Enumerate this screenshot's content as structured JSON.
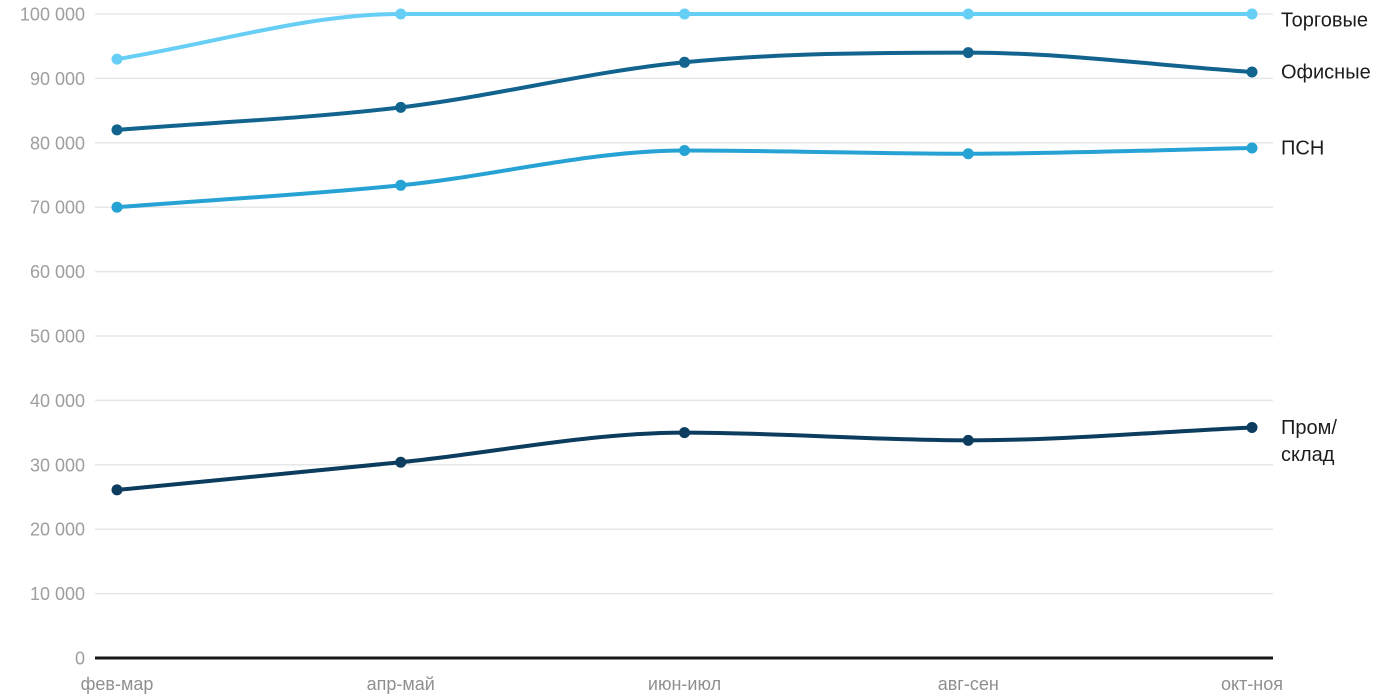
{
  "chart_data": {
    "type": "line",
    "title": "",
    "xlabel": "",
    "ylabel": "",
    "categories": [
      "фев-мар",
      "апр-май",
      "июн-июл",
      "авг-сен",
      "окт-ноя"
    ],
    "series": [
      {
        "name": "Торговые",
        "values": [
          93000,
          100000,
          100000,
          100000,
          100000
        ],
        "color": "#67cef5",
        "label_lines": [
          "Торговые"
        ]
      },
      {
        "name": "Офисные",
        "values": [
          82000,
          85500,
          92500,
          94000,
          91000
        ],
        "color": "#12648f",
        "label_lines": [
          "Офисные"
        ]
      },
      {
        "name": "ПСН",
        "values": [
          70000,
          73400,
          78800,
          78300,
          79200
        ],
        "color": "#27a2d4",
        "label_lines": [
          "ПСН"
        ]
      },
      {
        "name": "Пром/склад",
        "values": [
          26100,
          30400,
          35000,
          33800,
          35800
        ],
        "color": "#0c3c5e",
        "label_lines": [
          "Пром/",
          "склад"
        ]
      }
    ],
    "ylim": [
      0,
      100000
    ],
    "ytick_step": 10000,
    "ytick_labels": [
      "0",
      "10 000",
      "20 000",
      "30 000",
      "40 000",
      "50 000",
      "60 000",
      "70 000",
      "80 000",
      "90 000",
      "100 000"
    ],
    "grid": "horizontal",
    "legend_position": "right-end-labels"
  },
  "colors": {
    "grid_line": "#e7e7e7",
    "x_axis_line": "#161616",
    "y_tick_label": "#9e9e9e",
    "x_tick_label": "#8f8f8f",
    "series_label": "#1d1d1d",
    "background": "#ffffff"
  }
}
